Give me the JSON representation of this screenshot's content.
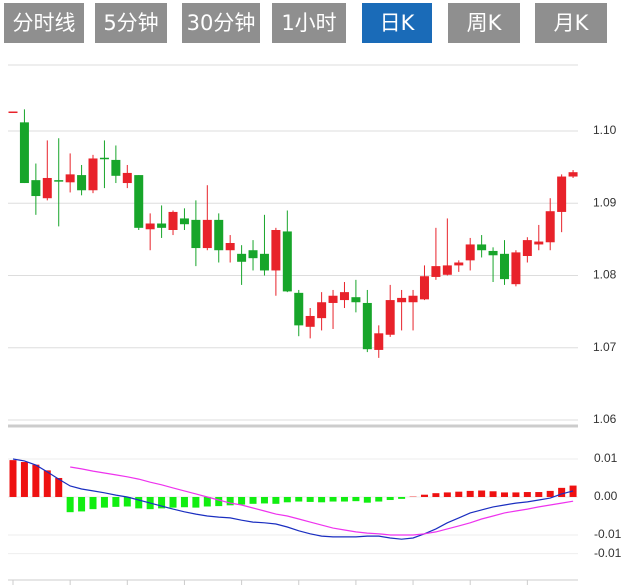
{
  "tabs": [
    "分时线",
    "5分钟",
    "30分钟",
    "1小时",
    "日K",
    "周K",
    "月K"
  ],
  "active_tab": 4,
  "chart_data": [
    {
      "type": "candlestick",
      "open": [
        1.1027,
        1.1012,
        1.0932,
        1.0907,
        1.0932,
        1.0929,
        1.0939,
        1.0918,
        1.0963,
        1.096,
        1.0928,
        1.0939,
        1.0864,
        1.0872,
        1.0863,
        1.0879,
        1.0877,
        1.0838,
        1.0877,
        1.0835,
        1.083,
        1.0835,
        1.083,
        1.0807,
        1.0861,
        1.0776,
        1.0729,
        1.0741,
        1.0762,
        1.0766,
        1.077,
        1.0762,
        1.0697,
        1.0718,
        1.0763,
        1.0763,
        1.0767,
        1.0798,
        1.0801,
        1.0814,
        1.0821,
        1.0843,
        1.0834,
        1.083,
        1.0788,
        1.0827,
        1.0843,
        1.0846,
        1.0888,
        1.0937
      ],
      "high": [
        1.1027,
        1.103,
        1.0955,
        1.0987,
        1.099,
        1.0969,
        1.0953,
        1.0967,
        1.0987,
        1.098,
        1.0953,
        1.0939,
        1.0886,
        1.0897,
        1.089,
        1.0893,
        1.0904,
        1.0925,
        1.0886,
        1.0856,
        1.0842,
        1.0849,
        1.0884,
        1.0866,
        1.089,
        1.078,
        1.0755,
        1.0777,
        1.078,
        1.0791,
        1.0794,
        1.078,
        1.0731,
        1.0787,
        1.078,
        1.078,
        1.0814,
        1.0866,
        1.0879,
        1.0821,
        1.0852,
        1.0856,
        1.0839,
        1.0849,
        1.0835,
        1.0853,
        1.087,
        1.0907,
        1.094,
        1.0946
      ],
      "low": [
        1.1027,
        1.0928,
        1.0884,
        1.0904,
        1.0868,
        1.0915,
        1.0911,
        1.0914,
        1.0921,
        1.0928,
        1.0921,
        1.0863,
        1.0835,
        1.0852,
        1.0856,
        1.0863,
        1.0813,
        1.0835,
        1.0818,
        1.0818,
        1.0787,
        1.0807,
        1.08,
        1.0772,
        1.0777,
        1.0716,
        1.0713,
        1.0724,
        1.0726,
        1.0755,
        1.0749,
        1.0694,
        1.0686,
        1.0715,
        1.0724,
        1.0724,
        1.0766,
        1.0794,
        1.08,
        1.0805,
        1.0807,
        1.0825,
        1.0791,
        1.0787,
        1.0785,
        1.0818,
        1.0835,
        1.0835,
        1.086,
        1.0935
      ],
      "close": [
        1.1027,
        1.0928,
        1.091,
        1.0935,
        1.093,
        1.094,
        1.0918,
        1.0962,
        1.0961,
        1.0938,
        1.0942,
        1.0866,
        1.0872,
        1.0866,
        1.0888,
        1.0871,
        1.0838,
        1.0877,
        1.0835,
        1.0845,
        1.0819,
        1.0824,
        1.0807,
        1.0863,
        1.0778,
        1.0731,
        1.0744,
        1.0763,
        1.0772,
        1.0777,
        1.0763,
        1.0698,
        1.072,
        1.0766,
        1.0769,
        1.0772,
        1.0799,
        1.0813,
        1.0814,
        1.0818,
        1.0843,
        1.0835,
        1.0828,
        1.0795,
        1.0832,
        1.0849,
        1.0847,
        1.0889,
        1.0937,
        1.0943
      ],
      "up_color": "#e8222a",
      "down_color": "#17a52a",
      "ylim": [
        1.06,
        1.109
      ],
      "yticks": [
        {
          "value": 1.1,
          "label": "1.10"
        },
        1.09,
        1.08,
        1.07,
        1.06
      ],
      "grid": true
    },
    {
      "type": "macd",
      "histogram": {
        "up_color": "#ee1111",
        "down_color": "#11ee11",
        "values": [
          0.0097,
          0.0092,
          0.0085,
          0.007,
          0.005,
          -0.004,
          -0.0038,
          -0.0032,
          -0.0028,
          -0.0026,
          -0.0025,
          -0.003,
          -0.0032,
          -0.003,
          -0.0028,
          -0.0027,
          -0.0028,
          -0.0025,
          -0.0024,
          -0.0022,
          -0.002,
          -0.0018,
          -0.0017,
          -0.0018,
          -0.0014,
          -0.0012,
          -0.0013,
          -0.0014,
          -0.0012,
          -0.0012,
          -0.0011,
          -0.0015,
          -0.0012,
          -0.0008,
          -0.0005,
          0.0001,
          0.0006,
          0.001,
          0.0012,
          0.0014,
          0.0016,
          0.0017,
          0.0015,
          0.0012,
          0.0012,
          0.0013,
          0.0013,
          0.0016,
          0.0024,
          0.003
        ]
      },
      "lines": [
        {
          "color": "#1a2ec0",
          "values": [
            0.01,
            0.0095,
            0.0084,
            0.0066,
            0.0047,
            0.0029,
            0.0021,
            0.0016,
            0.0011,
            0.0005,
            0,
            -0.0008,
            -0.0016,
            -0.0024,
            -0.0032,
            -0.0039,
            -0.0045,
            -0.005,
            -0.0053,
            -0.0055,
            -0.0061,
            -0.0066,
            -0.0068,
            -0.0071,
            -0.0079,
            -0.0089,
            -0.0097,
            -0.0103,
            -0.0105,
            -0.0105,
            -0.0105,
            -0.0103,
            -0.0103,
            -0.0108,
            -0.0111,
            -0.0108,
            -0.0097,
            -0.0084,
            -0.0068,
            -0.0055,
            -0.0042,
            -0.0034,
            -0.0026,
            -0.0021,
            -0.0016,
            -0.0013,
            -0.0008,
            -0.0003,
            0.0008,
            0.0016
          ]
        },
        {
          "color": "#ee33ee",
          "values": [
            null,
            null,
            null,
            null,
            null,
            0.0079,
            0.0074,
            0.0068,
            0.0063,
            0.0058,
            0.0053,
            0.0047,
            0.0039,
            0.0032,
            0.0024,
            0.0016,
            0.0008,
            0,
            -0.0008,
            -0.0016,
            -0.0021,
            -0.0029,
            -0.0037,
            -0.0045,
            -0.005,
            -0.0058,
            -0.0066,
            -0.0074,
            -0.0082,
            -0.0087,
            -0.0092,
            -0.0095,
            -0.0097,
            -0.01,
            -0.01,
            -0.01,
            -0.0097,
            -0.0092,
            -0.0084,
            -0.0076,
            -0.0068,
            -0.0058,
            -0.005,
            -0.0042,
            -0.0037,
            -0.0032,
            -0.0026,
            -0.0021,
            -0.0016,
            -0.0011
          ]
        }
      ],
      "ylim": [
        -0.0149,
        0.0171
      ],
      "yticks": [
        0.01,
        {
          "value": 0,
          "label": "0.00"
        },
        -0.01,
        {
          "value": -0.0149,
          "label": "-0.01"
        }
      ],
      "grid": true
    }
  ]
}
